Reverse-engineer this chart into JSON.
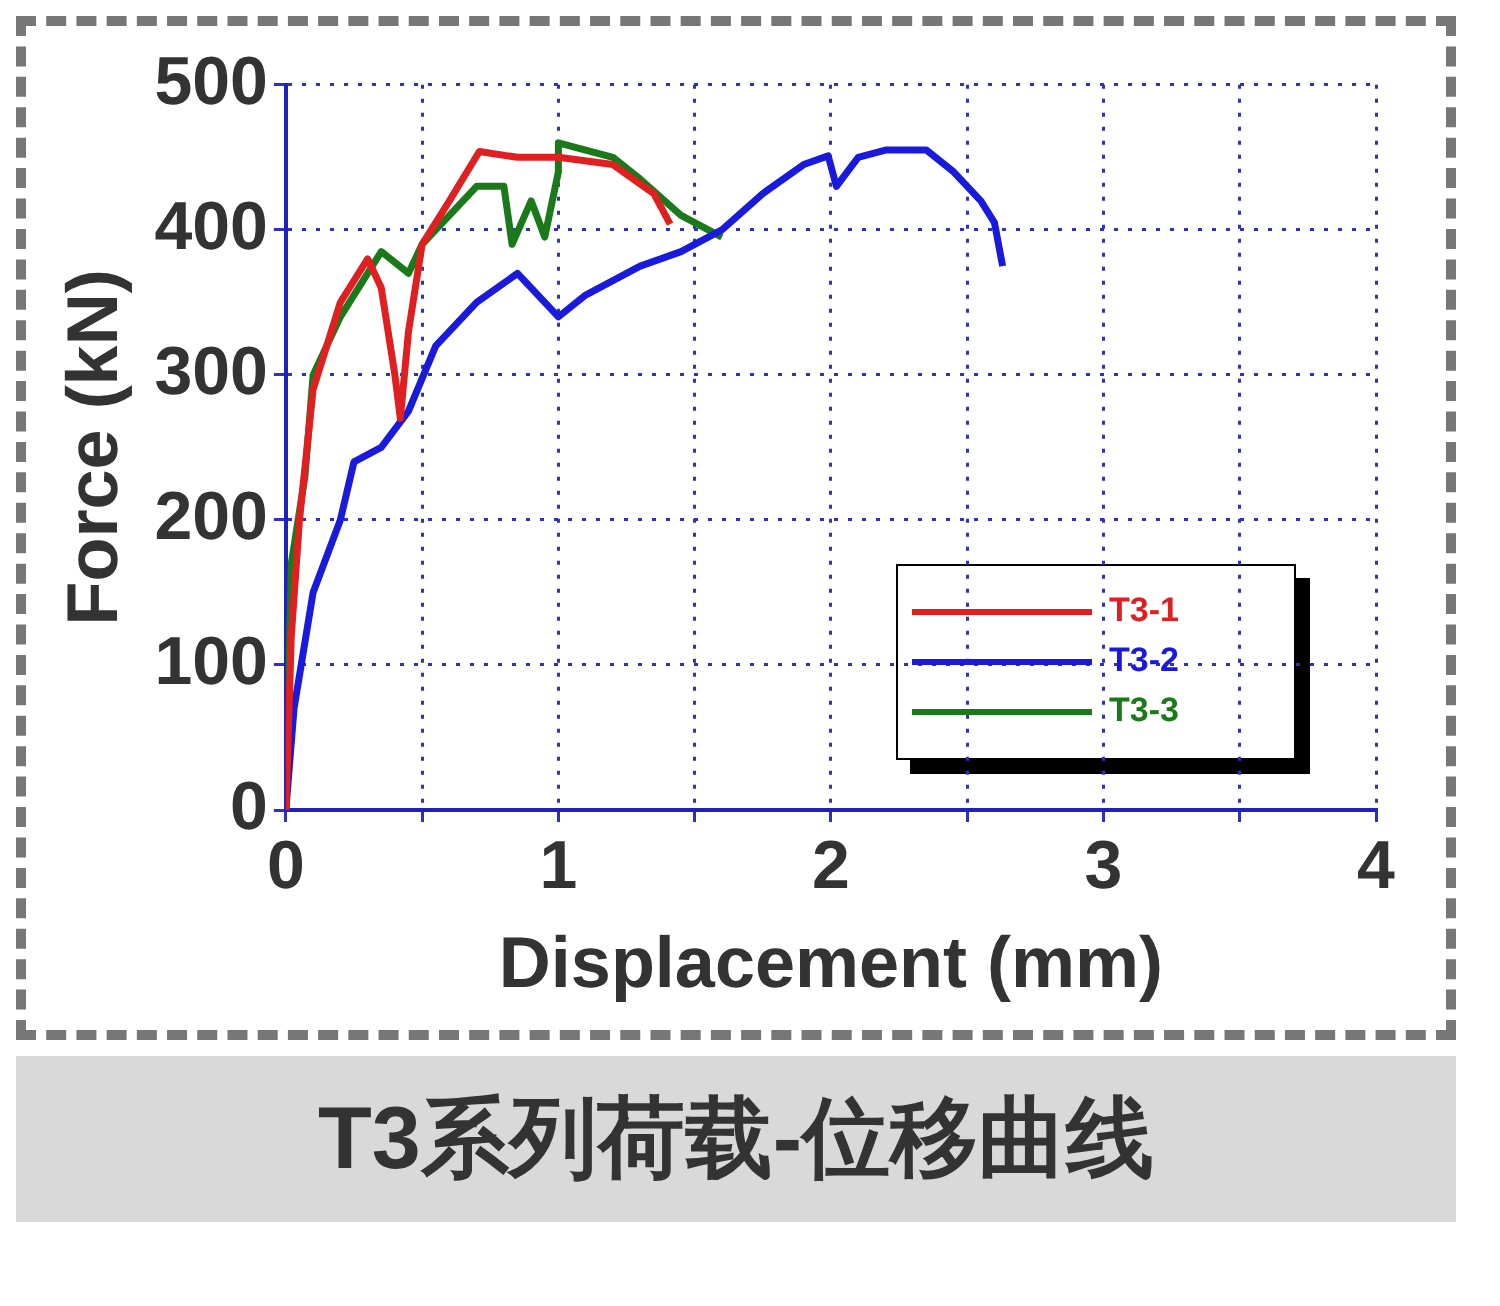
{
  "chart_data": {
    "type": "line",
    "title": "T3系列荷载-位移曲线",
    "xlabel": "Displacement (mm)",
    "ylabel": "Force (kN)",
    "xlim": [
      0,
      4
    ],
    "xticks": [
      0,
      {
        "value": 0.5,
        "label": null
      },
      1,
      {
        "value": 1.5,
        "label": null
      },
      2,
      {
        "value": 2.5,
        "label": null
      },
      3,
      {
        "value": 3.5,
        "label": null
      },
      4
    ],
    "ylim": [
      0,
      500
    ],
    "yticks": [
      0,
      100,
      200,
      300,
      400,
      500
    ],
    "grid": true,
    "legend": "bottom right",
    "marker": "none",
    "line_style": "solid",
    "series": [
      {
        "name": "T3-1",
        "color": "#e02020",
        "x": [
          0,
          0.02,
          0.05,
          0.1,
          0.2,
          0.3,
          0.35,
          0.4,
          0.42,
          0.45,
          0.5,
          0.6,
          0.71,
          0.85,
          1.0,
          1.2,
          1.35,
          1.41
        ],
        "values": [
          0,
          120,
          200,
          290,
          350,
          380,
          360,
          300,
          270,
          330,
          390,
          420,
          454,
          450,
          450,
          445,
          425,
          404
        ]
      },
      {
        "name": "T3-2",
        "color": "#1a1adc",
        "x": [
          0,
          0.03,
          0.1,
          0.2,
          0.25,
          0.35,
          0.45,
          0.55,
          0.7,
          0.85,
          0.9,
          1.0,
          1.1,
          1.3,
          1.45,
          1.6,
          1.75,
          1.9,
          1.99,
          2.02,
          2.1,
          2.2,
          2.35,
          2.45,
          2.55,
          2.6,
          2.63
        ],
        "values": [
          0,
          70,
          150,
          200,
          240,
          250,
          275,
          320,
          350,
          370,
          360,
          340,
          355,
          375,
          385,
          400,
          425,
          445,
          451,
          430,
          450,
          455,
          455,
          440,
          420,
          405,
          375
        ]
      },
      {
        "name": "T3-3",
        "color": "#1a7a1a",
        "x": [
          0,
          0.02,
          0.07,
          0.1,
          0.2,
          0.35,
          0.45,
          0.5,
          0.6,
          0.7,
          0.8,
          0.83,
          0.9,
          0.95,
          1.0,
          1.0,
          1.1,
          1.2,
          1.3,
          1.45,
          1.6
        ],
        "values": [
          0,
          170,
          230,
          300,
          340,
          385,
          370,
          390,
          410,
          430,
          430,
          390,
          420,
          395,
          440,
          460,
          455,
          450,
          435,
          410,
          395
        ]
      }
    ]
  }
}
